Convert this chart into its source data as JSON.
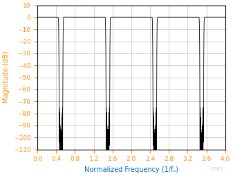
{
  "title": "",
  "xlabel": "Normalized Frequency (1/fₛ)",
  "ylabel": "Magnitude (dB)",
  "xlim": [
    0,
    4
  ],
  "ylim": [
    -110,
    10
  ],
  "xticks": [
    0,
    0.4,
    0.8,
    1.2,
    1.6,
    2.0,
    2.4,
    2.8,
    3.2,
    3.6,
    4.0
  ],
  "yticks": [
    10,
    0,
    -10,
    -20,
    -30,
    -40,
    -50,
    -60,
    -70,
    -80,
    -90,
    -100,
    -110
  ],
  "xlabel_color": "#0070C0",
  "ylabel_color": "#FF8C00",
  "tick_color": "#FF8C00",
  "line_color": "#000000",
  "background_color": "#ffffff",
  "grid_color": "#C0C0C0",
  "watermark": "C001",
  "watermark_color": "#C8C8C8",
  "figsize": [
    3.37,
    2.54
  ],
  "dpi": 100
}
